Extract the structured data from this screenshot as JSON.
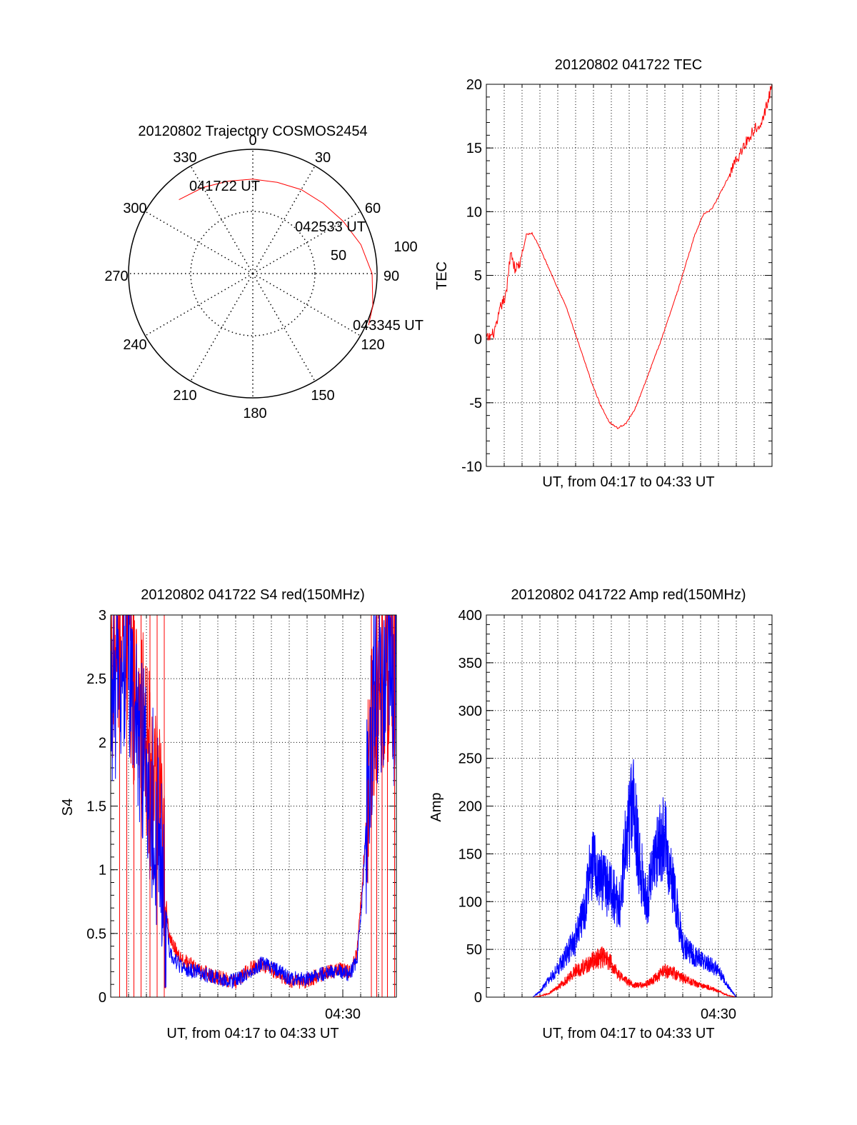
{
  "colors": {
    "red": "#ff0000",
    "blue": "#0000ff",
    "axis": "#000000",
    "grid": "#000000"
  },
  "chart_data": [
    {
      "id": "trajectory",
      "type": "polar",
      "title": "20120802 Trajectory COSMOS2454",
      "angle_labels": [
        "0",
        "30",
        "60",
        "90",
        "120",
        "150",
        "180",
        "210",
        "240",
        "270",
        "300",
        "330"
      ],
      "radius_labels": [
        "50",
        "100"
      ],
      "r_max": 100,
      "grid": true,
      "series": [
        {
          "color": "red",
          "points": [
            [
              315,
              84
            ],
            [
              330,
              80
            ],
            [
              345,
              77
            ],
            [
              0,
              76
            ],
            [
              15,
              76
            ],
            [
              30,
              78
            ],
            [
              45,
              80
            ],
            [
              60,
              84
            ],
            [
              75,
              90
            ],
            [
              90,
              96
            ],
            [
              105,
              100
            ],
            [
              114,
              102
            ]
          ]
        }
      ],
      "annotations": [
        {
          "text": "041722 UT",
          "az": 321,
          "r": 86
        },
        {
          "text": "042533 UT",
          "az": 62,
          "r": 78
        },
        {
          "text": "043345 UT",
          "az": 108,
          "r": 102
        }
      ]
    },
    {
      "id": "tec",
      "type": "line",
      "title": "20120802 041722 TEC",
      "xlabel": "UT, from 04:17 to 04:33 UT",
      "ylabel": "TEC",
      "xlim": [
        0,
        1
      ],
      "ylim": [
        -10,
        20
      ],
      "yticks": [
        -10,
        -5,
        0,
        5,
        10,
        15,
        20
      ],
      "xticks": [],
      "grid": true,
      "series": [
        {
          "color": "red",
          "x": [
            0.0,
            0.02,
            0.035,
            0.05,
            0.07,
            0.085,
            0.1,
            0.12,
            0.14,
            0.16,
            0.18,
            0.2,
            0.22,
            0.25,
            0.28,
            0.31,
            0.34,
            0.37,
            0.4,
            0.43,
            0.46,
            0.49,
            0.52,
            0.55,
            0.58,
            0.61,
            0.64,
            0.67,
            0.7,
            0.73,
            0.76,
            0.79,
            0.82,
            0.85,
            0.87,
            0.89,
            0.91,
            0.93,
            0.95,
            0.97,
            0.985,
            1.0
          ],
          "y": [
            0.0,
            0.3,
            0.9,
            2.5,
            3.5,
            7.0,
            5.5,
            6.0,
            8.2,
            8.3,
            7.5,
            6.5,
            5.5,
            4.0,
            2.5,
            0.5,
            -1.5,
            -3.5,
            -5.2,
            -6.5,
            -7.0,
            -6.6,
            -5.5,
            -3.8,
            -2.0,
            -0.2,
            1.8,
            3.8,
            6.0,
            8.2,
            9.8,
            10.2,
            11.5,
            12.8,
            14.0,
            14.6,
            15.5,
            16.2,
            16.8,
            17.4,
            18.6,
            20.0
          ]
        }
      ]
    },
    {
      "id": "s4",
      "type": "line",
      "title": "20120802 041722 S4 red(150MHz)",
      "xlabel": "UT, from 04:17 to 04:33 UT",
      "ylabel": "S4",
      "xlim": [
        0,
        16
      ],
      "ylim": [
        0,
        3
      ],
      "yticks": [
        0,
        0.5,
        1,
        1.5,
        2,
        2.5,
        3
      ],
      "xticks": [
        13
      ],
      "xtick_labels": [
        "04:30"
      ],
      "grid": true,
      "series": [
        {
          "color": "red",
          "x": [
            0.0,
            0.4,
            0.8,
            1.2,
            1.6,
            2.0,
            2.4,
            2.8,
            3.0,
            3.3,
            4.0,
            4.8,
            5.5,
            6.2,
            7.0,
            7.8,
            8.5,
            9.2,
            10.0,
            10.8,
            11.5,
            12.2,
            12.8,
            13.4,
            13.8,
            14.1,
            14.5,
            14.8,
            15.2,
            15.6,
            16.0
          ],
          "y": [
            2.7,
            2.6,
            2.9,
            2.5,
            2.3,
            1.9,
            1.6,
            1.3,
            0.9,
            0.45,
            0.3,
            0.22,
            0.18,
            0.15,
            0.12,
            0.22,
            0.26,
            0.2,
            0.13,
            0.12,
            0.16,
            0.2,
            0.22,
            0.2,
            0.35,
            0.9,
            1.8,
            2.4,
            2.6,
            2.5,
            2.8
          ]
        },
        {
          "color": "blue",
          "x": [
            0.0,
            0.4,
            0.8,
            1.2,
            1.6,
            2.0,
            2.4,
            2.8,
            3.0,
            3.3,
            4.0,
            4.8,
            5.5,
            6.2,
            7.0,
            7.8,
            8.5,
            9.2,
            10.0,
            10.8,
            11.5,
            12.2,
            12.8,
            13.4,
            13.8,
            14.1,
            14.5,
            14.8,
            15.2,
            15.6,
            16.0
          ],
          "y": [
            2.3,
            2.4,
            2.8,
            2.4,
            2.1,
            1.7,
            1.5,
            1.1,
            0.8,
            0.35,
            0.22,
            0.2,
            0.17,
            0.14,
            0.13,
            0.2,
            0.27,
            0.22,
            0.15,
            0.14,
            0.17,
            0.19,
            0.2,
            0.18,
            0.3,
            0.8,
            1.9,
            2.5,
            2.4,
            2.7,
            2.3
          ]
        }
      ]
    },
    {
      "id": "amp",
      "type": "line",
      "title": "20120802 041722 Amp red(150MHz)",
      "xlabel": "UT, from 04:17 to 04:33 UT",
      "ylabel": "Amp",
      "xlim": [
        0,
        16
      ],
      "ylim": [
        0,
        400
      ],
      "yticks": [
        0,
        50,
        100,
        150,
        200,
        250,
        300,
        350,
        400
      ],
      "xticks": [
        13
      ],
      "xtick_labels": [
        "04:30"
      ],
      "grid": true,
      "series": [
        {
          "color": "red",
          "x": [
            0.0,
            2.6,
            3.0,
            3.5,
            4.0,
            4.5,
            5.0,
            5.5,
            6.0,
            6.5,
            7.0,
            7.5,
            8.0,
            8.5,
            9.0,
            9.5,
            10.0,
            10.5,
            11.0,
            11.5,
            12.0,
            12.5,
            13.0,
            13.5,
            14.0,
            16.0
          ],
          "y": [
            0,
            0,
            1,
            4,
            10,
            18,
            28,
            32,
            38,
            42,
            35,
            22,
            15,
            12,
            14,
            20,
            28,
            25,
            20,
            16,
            12,
            10,
            6,
            2,
            0,
            0
          ]
        },
        {
          "color": "blue",
          "x": [
            0.0,
            2.6,
            3.0,
            3.5,
            4.0,
            4.5,
            5.0,
            5.5,
            5.8,
            6.1,
            6.5,
            7.0,
            7.5,
            7.8,
            8.2,
            8.6,
            9.0,
            9.5,
            10.0,
            10.5,
            11.0,
            11.5,
            12.0,
            12.5,
            13.0,
            13.5,
            14.0,
            16.0
          ],
          "y": [
            0,
            0,
            6,
            18,
            30,
            45,
            60,
            90,
            130,
            145,
            120,
            110,
            95,
            165,
            205,
            140,
            100,
            150,
            170,
            110,
            55,
            45,
            40,
            35,
            28,
            12,
            0,
            0
          ]
        }
      ]
    }
  ]
}
